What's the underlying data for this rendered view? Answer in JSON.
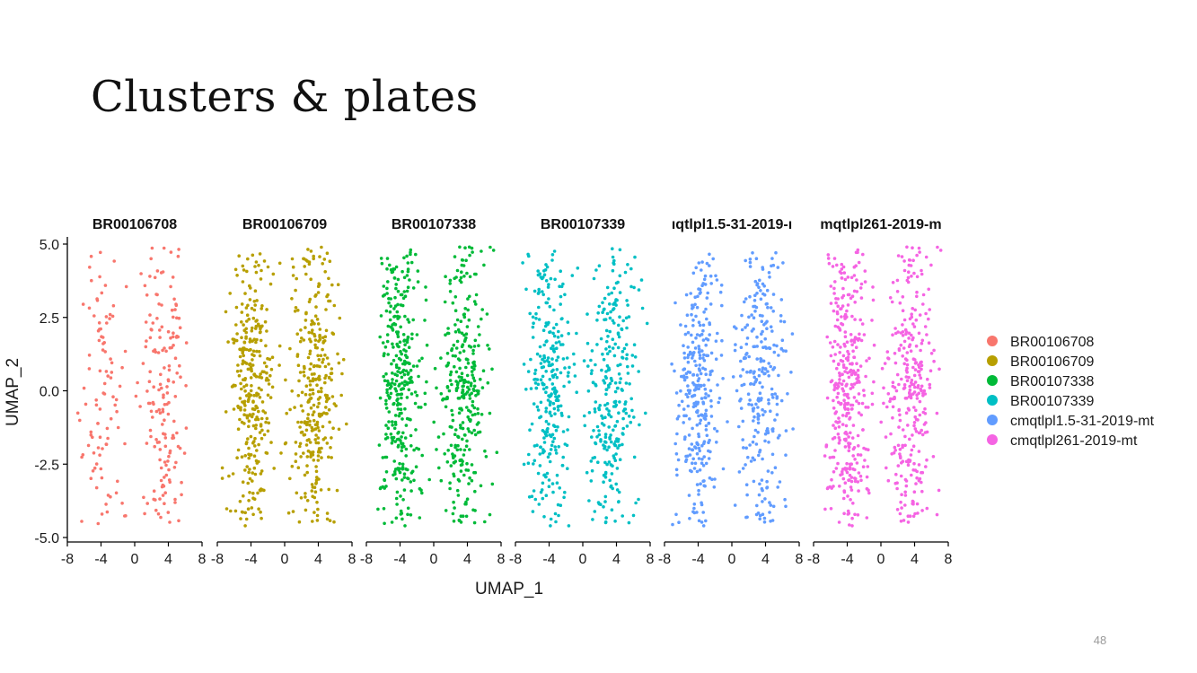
{
  "slide": {
    "title": "Clusters & plates",
    "page_number": "48"
  },
  "chart_data": {
    "type": "scatter",
    "facet_by": "plate",
    "facets": [
      "BR00106708",
      "BR00106709",
      "BR00107338",
      "BR00107339",
      "cmqtlpl1.5-31-2019-mt",
      "cmqtlpl261-2019-mt"
    ],
    "facet_title_display": [
      "BR00106708",
      "BR00106709",
      "BR00107338",
      "BR00107339",
      "ıqtlpl1.5-31-2019-ı",
      "mqtlpl261-2019-m"
    ],
    "xlabel": "UMAP_1",
    "ylabel": "UMAP_2",
    "xlim": [
      -8,
      8
    ],
    "ylim": [
      -5,
      5
    ],
    "x_ticks": [
      -8,
      -4,
      0,
      4,
      8
    ],
    "x_tick_labels": [
      "-8",
      "-4",
      "0",
      "4",
      "8"
    ],
    "y_ticks": [
      -5,
      -2.5,
      0,
      2.5,
      5
    ],
    "y_tick_labels": [
      "-5.0",
      "-2.5",
      "0.0",
      "2.5",
      "5.0"
    ],
    "grid": false,
    "legend_position": "right",
    "legend": [
      {
        "label": "BR00106708",
        "color": "#F8766D"
      },
      {
        "label": "BR00106709",
        "color": "#B79F00"
      },
      {
        "label": "BR00107338",
        "color": "#00BA38"
      },
      {
        "label": "BR00107339",
        "color": "#00BFC4"
      },
      {
        "label": "cmqtlpl1.5-31-2019-mt",
        "color": "#619CFF"
      },
      {
        "label": "cmqtlpl261-2019-mt",
        "color": "#F564E3"
      }
    ],
    "series": [
      {
        "name": "BR00106708",
        "color": "#F8766D",
        "n_points": 260
      },
      {
        "name": "BR00106709",
        "color": "#B79F00",
        "n_points": 620
      },
      {
        "name": "BR00107338",
        "color": "#00BA38",
        "n_points": 640
      },
      {
        "name": "BR00107339",
        "color": "#00BFC4",
        "n_points": 560
      },
      {
        "name": "cmqtlpl1.5-31-2019-mt",
        "color": "#619CFF",
        "n_points": 560
      },
      {
        "name": "cmqtlpl261-2019-mt",
        "color": "#F564E3",
        "n_points": 640
      }
    ],
    "cluster_shape": {
      "left_cluster": {
        "x_center": -4,
        "x_spread": 2.0,
        "y_range": [
          -4.6,
          4.8
        ]
      },
      "right_cluster": {
        "x_center": 3.5,
        "x_spread": 2.2,
        "y_range": [
          -4.5,
          4.9
        ]
      }
    }
  }
}
